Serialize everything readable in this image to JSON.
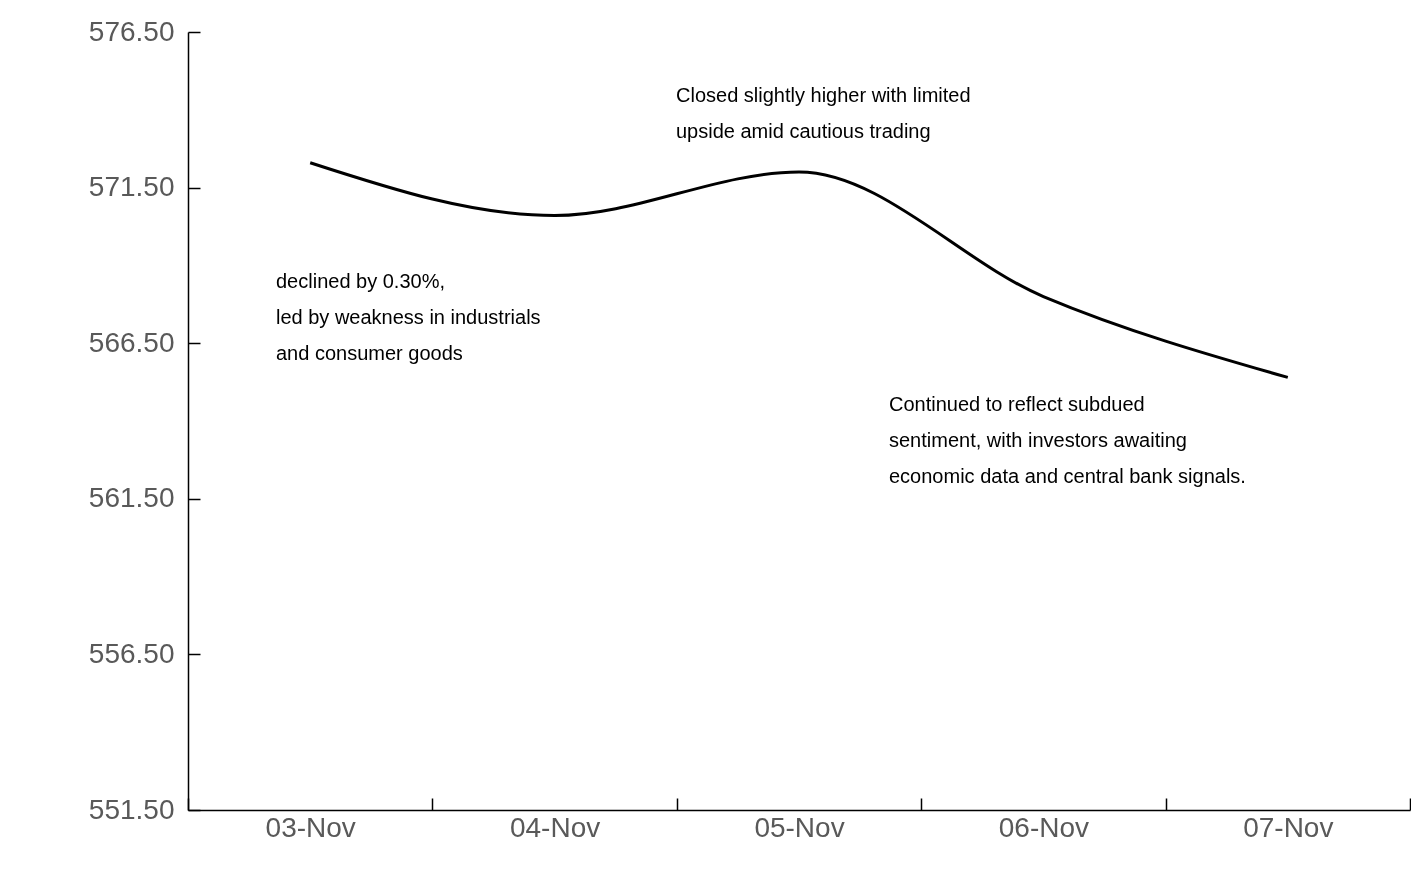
{
  "chart_data": {
    "type": "line",
    "categories": [
      "03-Nov",
      "04-Nov",
      "05-Nov",
      "06-Nov",
      "07-Nov"
    ],
    "series": [
      {
        "color": "#000000",
        "values": [
          572.3,
          570.6,
          572.0,
          568.0,
          565.4
        ]
      }
    ],
    "ylim": [
      551.5,
      576.5
    ],
    "yticks": [
      {
        "value": 551.5,
        "label": "551.50"
      },
      {
        "value": 556.5,
        "label": "556.50"
      },
      {
        "value": 561.5,
        "label": "561.50"
      },
      {
        "value": 566.5,
        "label": "566.50"
      },
      {
        "value": 571.5,
        "label": "571.50"
      },
      {
        "value": 576.5,
        "label": "576.50"
      }
    ],
    "annotations": [
      "declined by 0.30%,\nled by weakness in industrials\nand consumer goods",
      "Closed slightly higher with limited\nupside amid cautious trading",
      "Continued to reflect subdued\nsentiment, with investors awaiting\neconomic data and central bank signals."
    ],
    "grid": false,
    "legend": false,
    "line_style": "solid",
    "marker": "none"
  }
}
